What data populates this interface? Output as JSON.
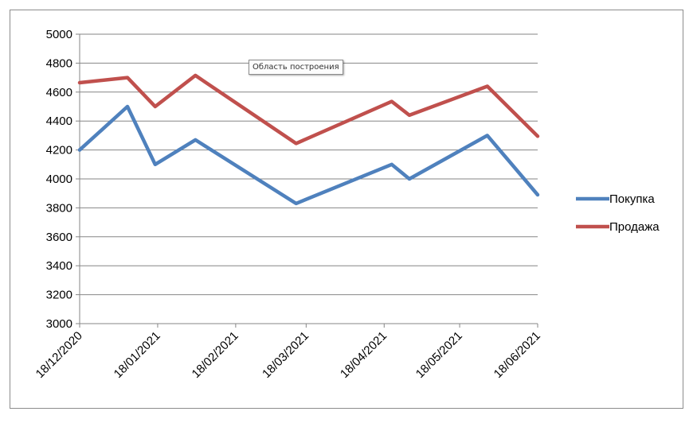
{
  "tooltip": "Область построения",
  "chart_data": {
    "type": "line",
    "title": "",
    "xlabel": "",
    "ylabel": "",
    "ylim": [
      3000,
      5000
    ],
    "yticks": [
      3000,
      3200,
      3400,
      3600,
      3800,
      4000,
      4200,
      4400,
      4600,
      4800,
      5000
    ],
    "xlim": [
      "2020-12-18",
      "2021-06-18"
    ],
    "xticks": [
      "18/12/2020",
      "18/01/2021",
      "18/02/2021",
      "18/03/2021",
      "18/04/2021",
      "18/05/2021",
      "18/06/2021"
    ],
    "grid": "horizontal",
    "legend": "right",
    "series": [
      {
        "name": "Покупка",
        "color": "#4f81bd",
        "points": [
          {
            "x": "2020-12-18",
            "y": 4200
          },
          {
            "x": "2021-01-06",
            "y": 4500
          },
          {
            "x": "2021-01-17",
            "y": 4100
          },
          {
            "x": "2021-02-02",
            "y": 4270
          },
          {
            "x": "2021-03-14",
            "y": 3830
          },
          {
            "x": "2021-04-21",
            "y": 4100
          },
          {
            "x": "2021-04-28",
            "y": 4000
          },
          {
            "x": "2021-05-29",
            "y": 4300
          },
          {
            "x": "2021-06-18",
            "y": 3890
          }
        ]
      },
      {
        "name": "Продажа",
        "color": "#c0504d",
        "points": [
          {
            "x": "2020-12-18",
            "y": 4665
          },
          {
            "x": "2021-01-06",
            "y": 4700
          },
          {
            "x": "2021-01-17",
            "y": 4500
          },
          {
            "x": "2021-02-02",
            "y": 4715
          },
          {
            "x": "2021-03-14",
            "y": 4245
          },
          {
            "x": "2021-04-21",
            "y": 4535
          },
          {
            "x": "2021-04-28",
            "y": 4440
          },
          {
            "x": "2021-05-29",
            "y": 4640
          },
          {
            "x": "2021-06-18",
            "y": 4295
          }
        ]
      }
    ]
  }
}
